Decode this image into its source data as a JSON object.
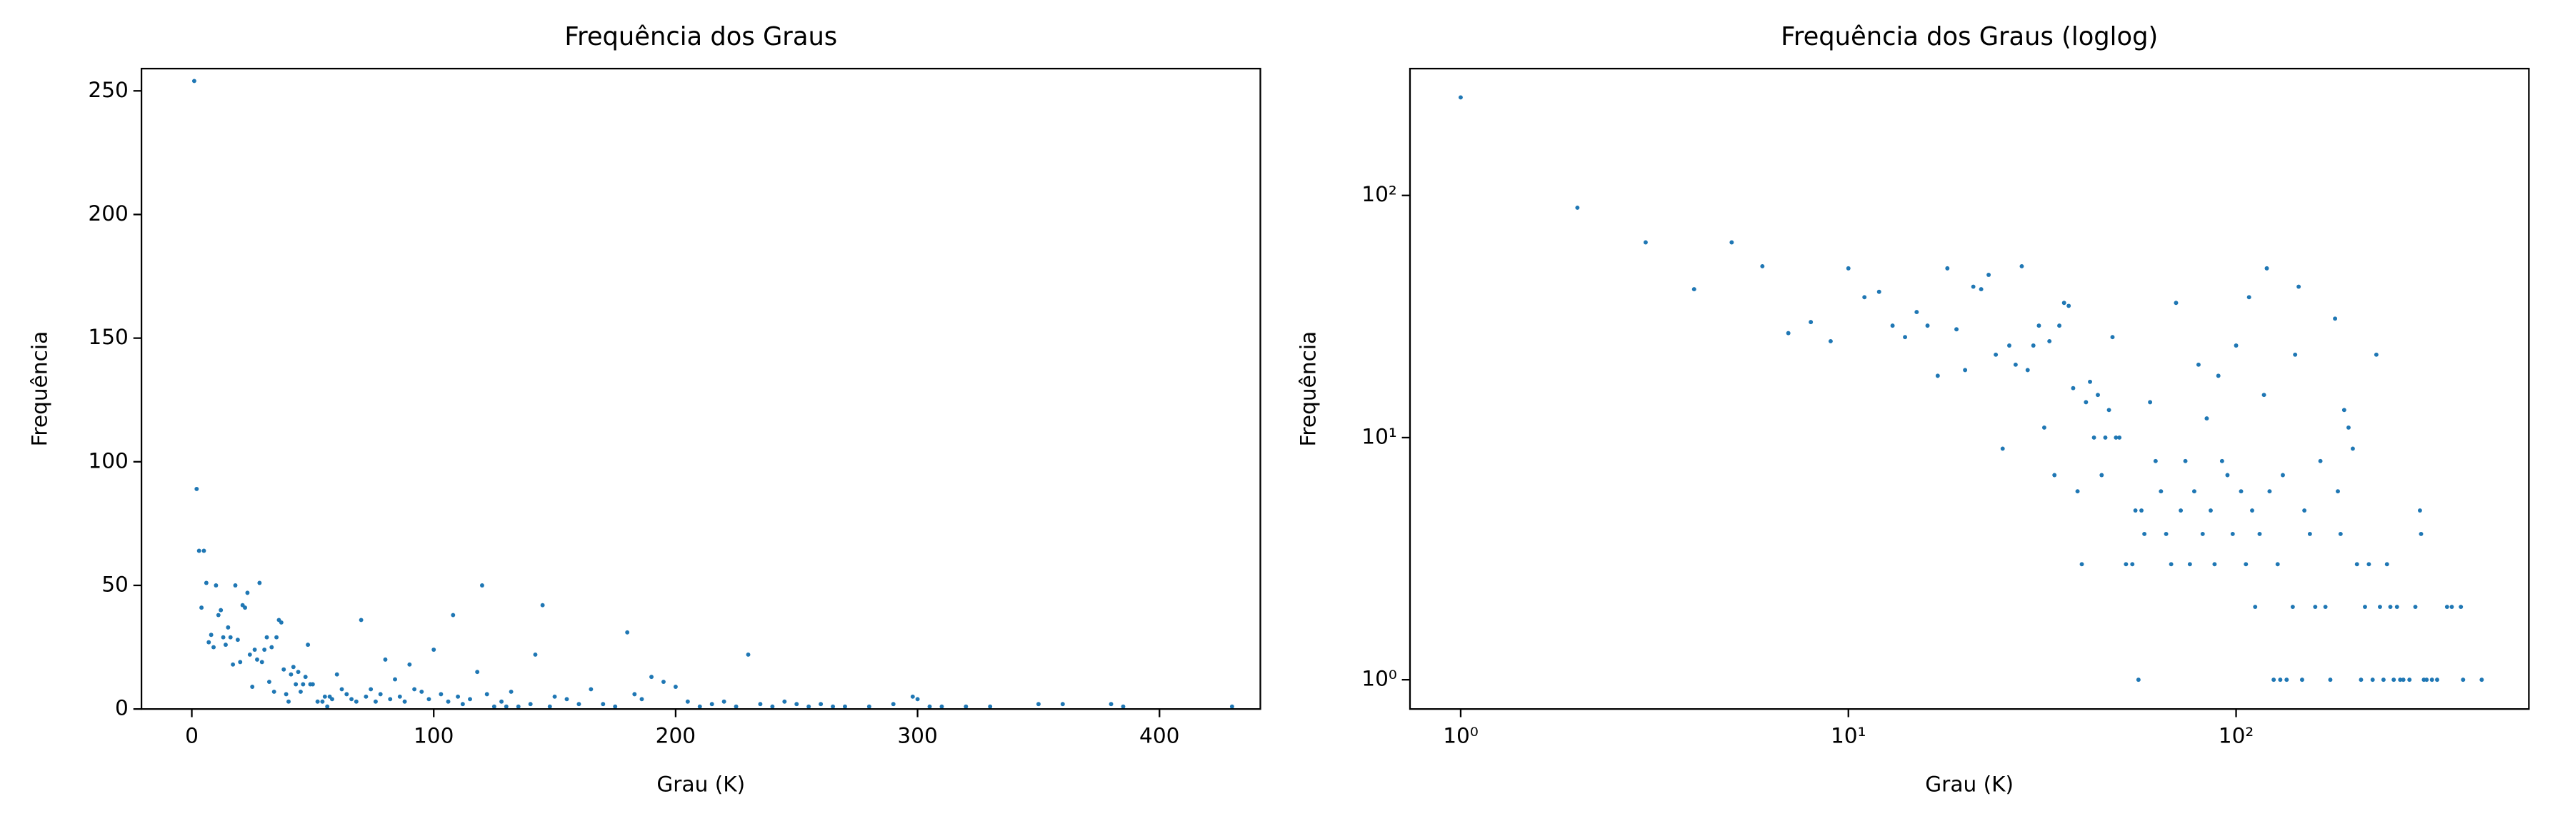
{
  "chart_data": [
    {
      "type": "scatter",
      "title": "Frequência dos Graus",
      "x_label": "Grau (K)",
      "y_label": "Frequência",
      "color": "#1f77b4",
      "x": [
        1,
        2,
        3,
        4,
        5,
        6,
        7,
        8,
        9,
        10,
        11,
        12,
        13,
        14,
        15,
        16,
        17,
        18,
        19,
        20,
        21,
        22,
        23,
        24,
        25,
        26,
        27,
        28,
        29,
        30,
        31,
        32,
        33,
        34,
        35,
        36,
        37,
        38,
        39,
        40,
        41,
        42,
        43,
        44,
        45,
        46,
        47,
        48,
        49,
        50,
        52,
        54,
        55,
        56,
        57,
        58,
        60,
        62,
        64,
        66,
        68,
        70,
        72,
        74,
        76,
        78,
        80,
        82,
        84,
        86,
        88,
        90,
        92,
        95,
        98,
        100,
        103,
        106,
        108,
        110,
        112,
        115,
        118,
        120,
        122,
        125,
        128,
        130,
        132,
        135,
        140,
        142,
        145,
        148,
        150,
        155,
        160,
        165,
        170,
        175,
        180,
        183,
        186,
        190,
        195,
        200,
        205,
        210,
        215,
        220,
        225,
        230,
        235,
        240,
        245,
        250,
        255,
        260,
        265,
        270,
        280,
        290,
        298,
        300,
        305,
        310,
        320,
        330,
        350,
        360,
        380,
        385,
        430
      ],
      "values": [
        254,
        89,
        64,
        41,
        64,
        51,
        27,
        30,
        25,
        50,
        38,
        40,
        29,
        26,
        33,
        29,
        18,
        50,
        28,
        19,
        42,
        41,
        47,
        22,
        9,
        24,
        20,
        51,
        19,
        24,
        29,
        11,
        25,
        7,
        29,
        36,
        35,
        16,
        6,
        3,
        14,
        17,
        10,
        15,
        7,
        10,
        13,
        26,
        10,
        10,
        3,
        3,
        5,
        1,
        5,
        4,
        14,
        8,
        6,
        4,
        3,
        36,
        5,
        8,
        3,
        6,
        20,
        4,
        12,
        5,
        3,
        18,
        8,
        7,
        4,
        24,
        6,
        3,
        38,
        5,
        2,
        4,
        15,
        50,
        6,
        1,
        3,
        1,
        7,
        1,
        2,
        22,
        42,
        1,
        5,
        4,
        2,
        8,
        2,
        1,
        31,
        6,
        4,
        13,
        11,
        9,
        3,
        1,
        2,
        3,
        1,
        22,
        2,
        1,
        3,
        2,
        1,
        2,
        1,
        1,
        1,
        2,
        5,
        4,
        1,
        1,
        1,
        1,
        2,
        2,
        2,
        1,
        1
      ],
      "xlim": [
        -20.8,
        441.7
      ],
      "ylim": [
        0,
        259
      ],
      "xticks": [
        0,
        100,
        200,
        300,
        400
      ],
      "yticks": [
        0,
        50,
        100,
        150,
        200,
        250
      ],
      "log": false
    },
    {
      "type": "scatter",
      "title": "Frequência dos Graus (loglog)",
      "x_label": "Grau (K)",
      "y_label": "Frequência",
      "color": "#1f77b4",
      "x": [
        1,
        2,
        3,
        4,
        5,
        6,
        7,
        8,
        9,
        10,
        11,
        12,
        13,
        14,
        15,
        16,
        17,
        18,
        19,
        20,
        21,
        22,
        23,
        24,
        25,
        26,
        27,
        28,
        29,
        30,
        31,
        32,
        33,
        34,
        35,
        36,
        37,
        38,
        39,
        40,
        41,
        42,
        43,
        44,
        45,
        46,
        47,
        48,
        49,
        50,
        52,
        54,
        55,
        56,
        57,
        58,
        60,
        62,
        64,
        66,
        68,
        70,
        72,
        74,
        76,
        78,
        80,
        82,
        84,
        86,
        88,
        90,
        92,
        95,
        98,
        100,
        103,
        106,
        108,
        110,
        112,
        115,
        118,
        120,
        122,
        125,
        128,
        130,
        132,
        135,
        140,
        142,
        145,
        148,
        150,
        155,
        160,
        165,
        170,
        175,
        180,
        183,
        186,
        190,
        195,
        200,
        205,
        210,
        215,
        220,
        225,
        230,
        235,
        240,
        245,
        250,
        255,
        260,
        265,
        270,
        280,
        290,
        298,
        300,
        305,
        310,
        320,
        330,
        350,
        360,
        380,
        385,
        430
      ],
      "values": [
        254,
        89,
        64,
        41,
        64,
        51,
        27,
        30,
        25,
        50,
        38,
        40,
        29,
        26,
        33,
        29,
        18,
        50,
        28,
        19,
        42,
        41,
        47,
        22,
        9,
        24,
        20,
        51,
        19,
        24,
        29,
        11,
        25,
        7,
        29,
        36,
        35,
        16,
        6,
        3,
        14,
        17,
        10,
        15,
        7,
        10,
        13,
        26,
        10,
        10,
        3,
        3,
        5,
        1,
        5,
        4,
        14,
        8,
        6,
        4,
        3,
        36,
        5,
        8,
        3,
        6,
        20,
        4,
        12,
        5,
        3,
        18,
        8,
        7,
        4,
        24,
        6,
        3,
        38,
        5,
        2,
        4,
        15,
        50,
        6,
        1,
        3,
        1,
        7,
        1,
        2,
        22,
        42,
        1,
        5,
        4,
        2,
        8,
        2,
        1,
        31,
        6,
        4,
        13,
        11,
        9,
        3,
        1,
        2,
        3,
        1,
        22,
        2,
        1,
        3,
        2,
        1,
        2,
        1,
        1,
        1,
        2,
        5,
        4,
        1,
        1,
        1,
        1,
        2,
        2,
        2,
        1,
        1
      ],
      "xlim": [
        0.74,
        569
      ],
      "ylim": [
        0.757,
        334
      ],
      "xticks": [
        {
          "value": 1,
          "label": "10⁰"
        },
        {
          "value": 10,
          "label": "10¹"
        },
        {
          "value": 100,
          "label": "10²"
        }
      ],
      "yticks": [
        {
          "value": 1,
          "label": "10⁰"
        },
        {
          "value": 10,
          "label": "10¹"
        },
        {
          "value": 100,
          "label": "10²"
        }
      ],
      "log": true
    }
  ]
}
